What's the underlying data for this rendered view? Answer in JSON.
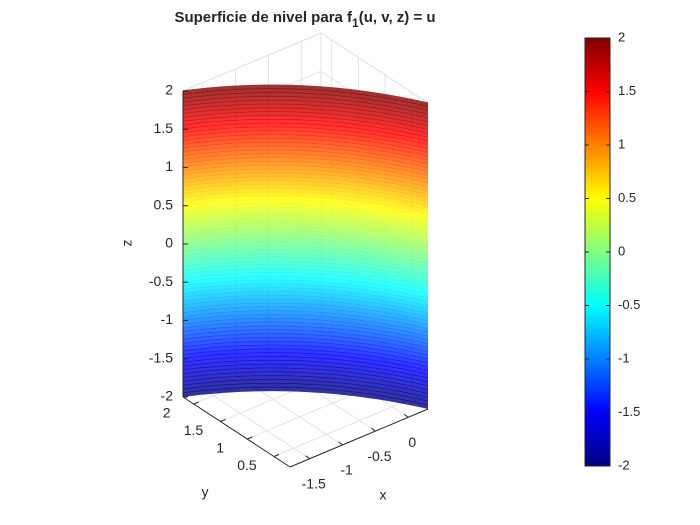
{
  "chart_data": {
    "type": "surface",
    "title": {
      "main": "Superficie de nivel para f",
      "subscript": "1",
      "rest": "(u, v, z) = u"
    },
    "xlabel": "x",
    "ylabel": "y",
    "zlabel": "z",
    "xlim": [
      -1.8,
      0.3
    ],
    "ylim": [
      0.2,
      2.2
    ],
    "zlim": [
      -2,
      2
    ],
    "xticks": [
      -1.5,
      -1,
      -0.5,
      0
    ],
    "yticks": [
      0.5,
      1,
      1.5,
      2
    ],
    "zticks": [
      -2,
      -1.5,
      -1,
      -0.5,
      0,
      0.5,
      1,
      1.5,
      2
    ],
    "colormap": "jet",
    "clim": [
      -2,
      2
    ],
    "cticks": [
      -2,
      -1.5,
      -1,
      -0.5,
      0,
      0.5,
      1,
      1.5,
      2
    ],
    "face_alpha": 0.8,
    "grid": true
  }
}
